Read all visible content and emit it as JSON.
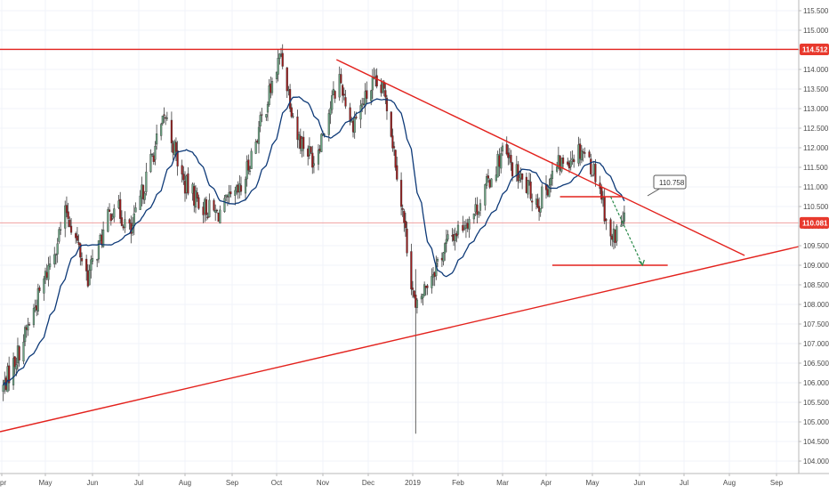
{
  "chart_data": {
    "type": "candlestick",
    "instrument_description": "Daily candlestick price chart with a moving average, horizontal levels, a symmetrical triangle and a projected path",
    "x_tick_labels": [
      "pr",
      "May",
      "Jun",
      "Jul",
      "Aug",
      "Sep",
      "Oct",
      "Nov",
      "Dec",
      "2019",
      "Feb",
      "Mar",
      "Apr",
      "May",
      "Jun",
      "Jul",
      "Aug",
      "Sep"
    ],
    "y_tick_labels": [
      "104.000",
      "104.500",
      "105.000",
      "105.500",
      "106.000",
      "106.500",
      "107.000",
      "107.500",
      "108.000",
      "108.500",
      "109.000",
      "109.500",
      "110.000",
      "110.500",
      "111.000",
      "111.500",
      "112.000",
      "112.500",
      "113.000",
      "113.500",
      "114.000",
      "114.500",
      "115.000",
      "115.500"
    ],
    "ylim": [
      103.85,
      115.75
    ],
    "price_axis_side": "right",
    "current_price_label": "110.081",
    "current_price": 110.081,
    "resistance_label": "114.512",
    "resistance_level": 114.512,
    "callout_label": "110.758",
    "callout_value": 110.758,
    "upper_trendline": {
      "from": {
        "x": "2018-11-10",
        "y": 114.25
      },
      "to": {
        "x": "2019-08-11",
        "y": 109.25
      }
    },
    "lower_trendline": {
      "from": {
        "x": "2018-03-25",
        "y": 104.7
      },
      "to": {
        "x": "2019-09-30",
        "y": 109.6
      }
    },
    "level_110_75": {
      "from": {
        "x": "2019-04-10",
        "y": 110.75
      },
      "to": {
        "x": "2019-05-20",
        "y": 110.75
      }
    },
    "level_109_00": {
      "from": {
        "x": "2019-04-05",
        "y": 109.0
      },
      "to": {
        "x": "2019-06-20",
        "y": 109.0
      }
    },
    "projection_path": {
      "from": {
        "x": "2019-05-13",
        "y": 110.75
      },
      "to": {
        "x": "2019-06-03",
        "y": 109.0
      }
    },
    "colors": {
      "up": "#6ba583",
      "down": "#9c1b1b",
      "candle_border": "#3c3c3c",
      "moving_average": "#0e3a78",
      "drawings": "#e3221d",
      "projection": "#2a8a4a",
      "price_tag_bg": "#e8392d",
      "current_price_line": "#f0a0a0"
    }
  }
}
